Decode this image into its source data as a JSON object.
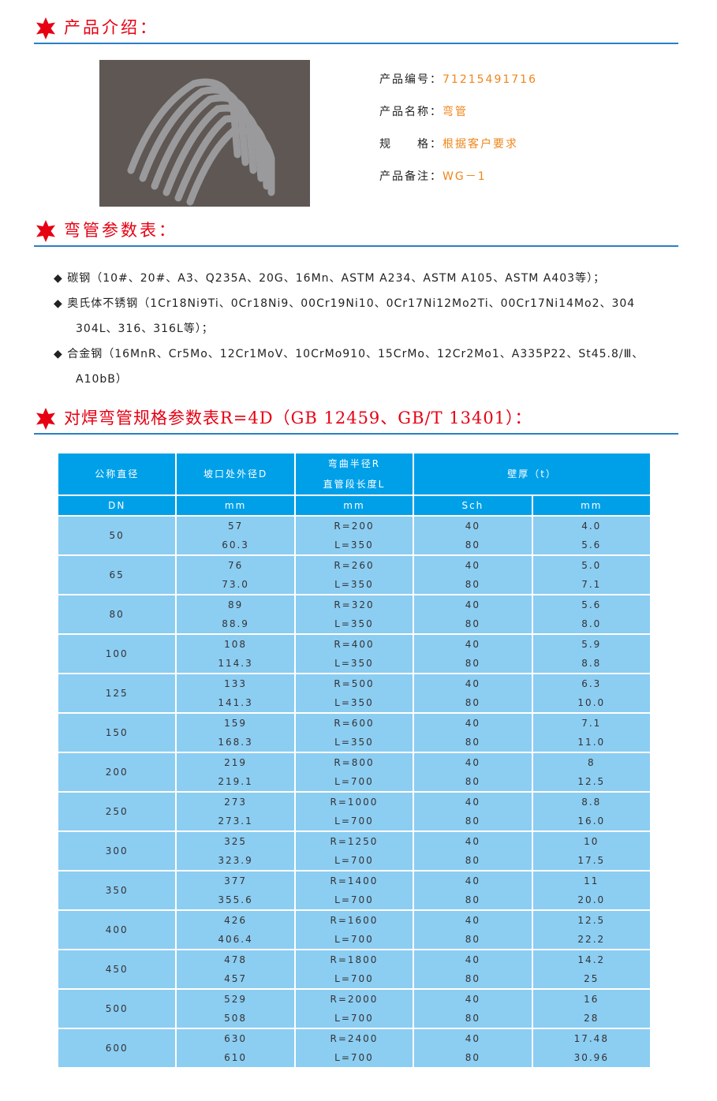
{
  "sections": {
    "intro": "产品介绍：",
    "params": "弯管参数表：",
    "spec": "对焊弯管规格参数表R=4D（GB 12459、GB/T 13401）："
  },
  "product": {
    "code_label": "产品编号：",
    "code": "71215491716",
    "name_label": "产品名称：",
    "name": "弯管",
    "spec_label": "规　　格：",
    "spec": "根据客户要求",
    "note_label": "产品备注：",
    "note": "WG－1"
  },
  "materials": [
    {
      "line1": "碳钢（10#、20#、A3、Q235A、20G、16Mn、ASTM A234、ASTM A105、ASTM A403等）；",
      "line2": ""
    },
    {
      "line1": "奥氏体不锈钢（1Cr18Ni9Ti、0Cr18Ni9、00Cr19Ni10、0Cr17Ni12Mo2Ti、00Cr17Ni14Mo2、304",
      "line2": "304L、316、316L等）；"
    },
    {
      "line1": "合金钢（16MnR、Cr5Mo、12Cr1MoV、10CrMo910、15CrMo、12Cr2Mo1、A335P22、St45.8/Ⅲ、",
      "line2": "A10bB）"
    }
  ],
  "colors": {
    "accent": "#e60012",
    "orange": "#f08519",
    "header": "#00a0e9",
    "body": "#8ccdf2",
    "rule": "#2a7fc4"
  },
  "table": {
    "headers": [
      "公称直径",
      "坡口处外径D",
      "弯曲半径R",
      "直管段长度L",
      "壁厚（t）"
    ],
    "units": [
      "DN",
      "mm",
      "mm",
      "Sch",
      "mm"
    ],
    "rows": [
      {
        "dn": "50",
        "d1": "57",
        "d2": "60.3",
        "r": "R=200",
        "l": "L=350",
        "s1": "40",
        "s2": "80",
        "t1": "4.0",
        "t2": "5.6"
      },
      {
        "dn": "65",
        "d1": "76",
        "d2": "73.0",
        "r": "R=260",
        "l": "L=350",
        "s1": "40",
        "s2": "80",
        "t1": "5.0",
        "t2": "7.1"
      },
      {
        "dn": "80",
        "d1": "89",
        "d2": "88.9",
        "r": "R=320",
        "l": "L=350",
        "s1": "40",
        "s2": "80",
        "t1": "5.6",
        "t2": "8.0"
      },
      {
        "dn": "100",
        "d1": "108",
        "d2": "114.3",
        "r": "R=400",
        "l": "L=350",
        "s1": "40",
        "s2": "80",
        "t1": "5.9",
        "t2": "8.8"
      },
      {
        "dn": "125",
        "d1": "133",
        "d2": "141.3",
        "r": "R=500",
        "l": "L=350",
        "s1": "40",
        "s2": "80",
        "t1": "6.3",
        "t2": "10.0"
      },
      {
        "dn": "150",
        "d1": "159",
        "d2": "168.3",
        "r": "R=600",
        "l": "L=350",
        "s1": "40",
        "s2": "80",
        "t1": "7.1",
        "t2": "11.0"
      },
      {
        "dn": "200",
        "d1": "219",
        "d2": "219.1",
        "r": "R=800",
        "l": "L=700",
        "s1": "40",
        "s2": "80",
        "t1": "8",
        "t2": "12.5"
      },
      {
        "dn": "250",
        "d1": "273",
        "d2": "273.1",
        "r": "R=1000",
        "l": "L=700",
        "s1": "40",
        "s2": "80",
        "t1": "8.8",
        "t2": "16.0"
      },
      {
        "dn": "300",
        "d1": "325",
        "d2": "323.9",
        "r": "R=1250",
        "l": "L=700",
        "s1": "40",
        "s2": "80",
        "t1": "10",
        "t2": "17.5"
      },
      {
        "dn": "350",
        "d1": "377",
        "d2": "355.6",
        "r": "R=1400",
        "l": "L=700",
        "s1": "40",
        "s2": "80",
        "t1": "11",
        "t2": "20.0"
      },
      {
        "dn": "400",
        "d1": "426",
        "d2": "406.4",
        "r": "R=1600",
        "l": "L=700",
        "s1": "40",
        "s2": "80",
        "t1": "12.5",
        "t2": "22.2"
      },
      {
        "dn": "450",
        "d1": "478",
        "d2": "457",
        "r": "R=1800",
        "l": "L=700",
        "s1": "40",
        "s2": "80",
        "t1": "14.2",
        "t2": "25"
      },
      {
        "dn": "500",
        "d1": "529",
        "d2": "508",
        "r": "R=2000",
        "l": "L=700",
        "s1": "40",
        "s2": "80",
        "t1": "16",
        "t2": "28"
      },
      {
        "dn": "600",
        "d1": "630",
        "d2": "610",
        "r": "R=2400",
        "l": "L=700",
        "s1": "40",
        "s2": "80",
        "t1": "17.48",
        "t2": "30.96"
      }
    ]
  }
}
